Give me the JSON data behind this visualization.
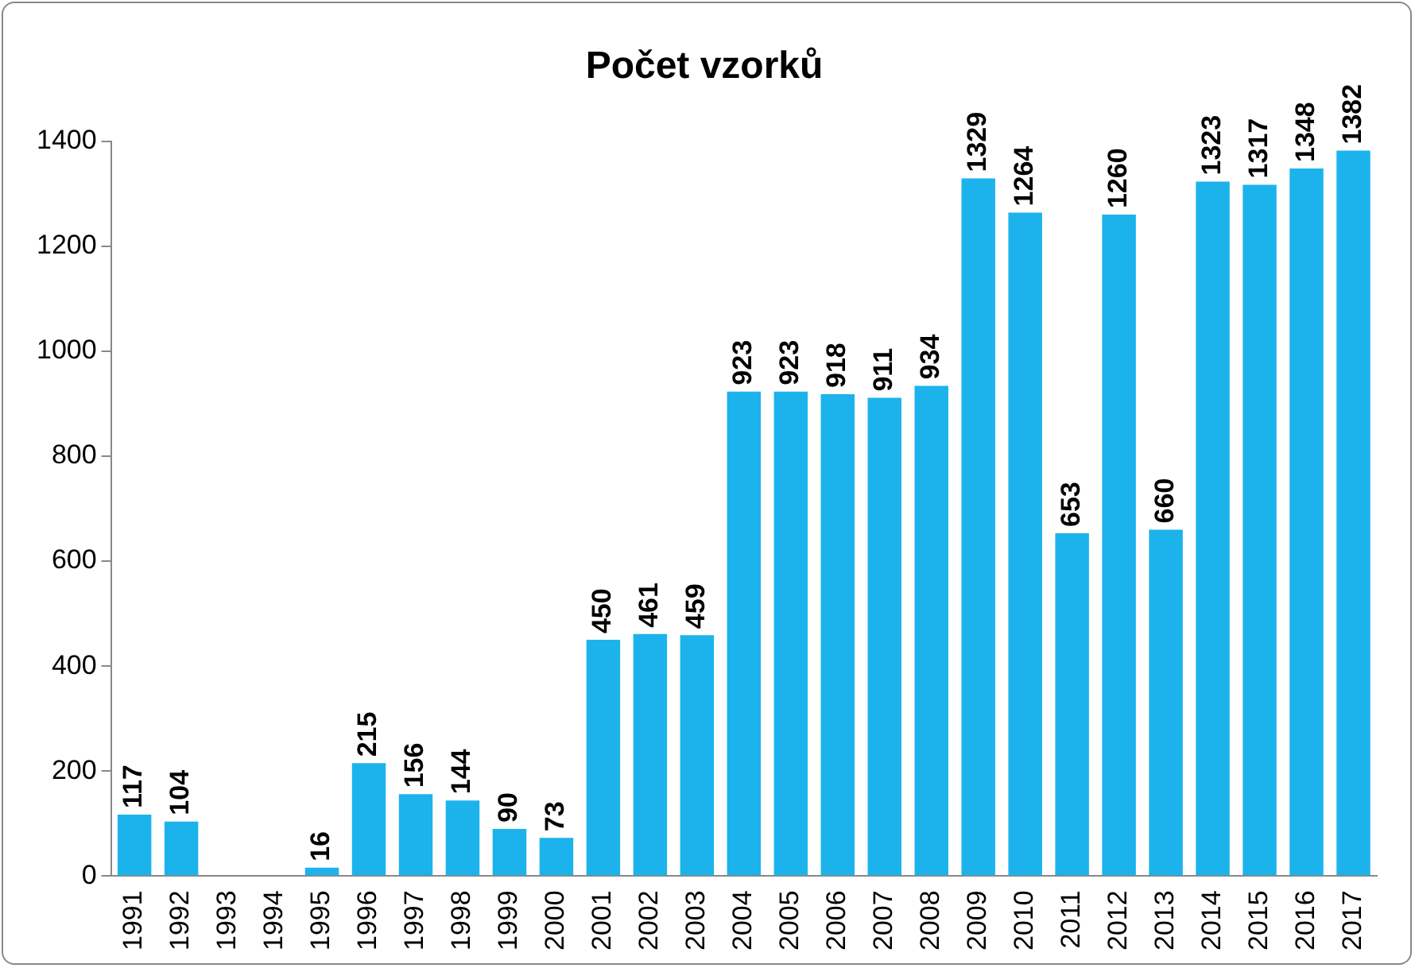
{
  "chart_data": {
    "type": "bar",
    "title": "Počet vzorků",
    "categories": [
      "1991",
      "1992",
      "1993",
      "1994",
      "1995",
      "1996",
      "1997",
      "1998",
      "1999",
      "2000",
      "2001",
      "2002",
      "2003",
      "2004",
      "2005",
      "2006",
      "2007",
      "2008",
      "2009",
      "2010",
      "2011",
      "2012",
      "2013",
      "2014",
      "2015",
      "2016",
      "2017"
    ],
    "values": [
      117,
      104,
      null,
      null,
      16,
      215,
      156,
      144,
      90,
      73,
      450,
      461,
      459,
      923,
      923,
      918,
      911,
      934,
      1329,
      1264,
      653,
      1260,
      660,
      1323,
      1317,
      1348,
      1382
    ],
    "color": "#1cb3ec",
    "ylim": [
      0,
      1400
    ],
    "yticks": [
      0,
      200,
      400,
      600,
      800,
      1000,
      1200,
      1400
    ],
    "grid": false,
    "legend": false,
    "data_labels": true
  }
}
